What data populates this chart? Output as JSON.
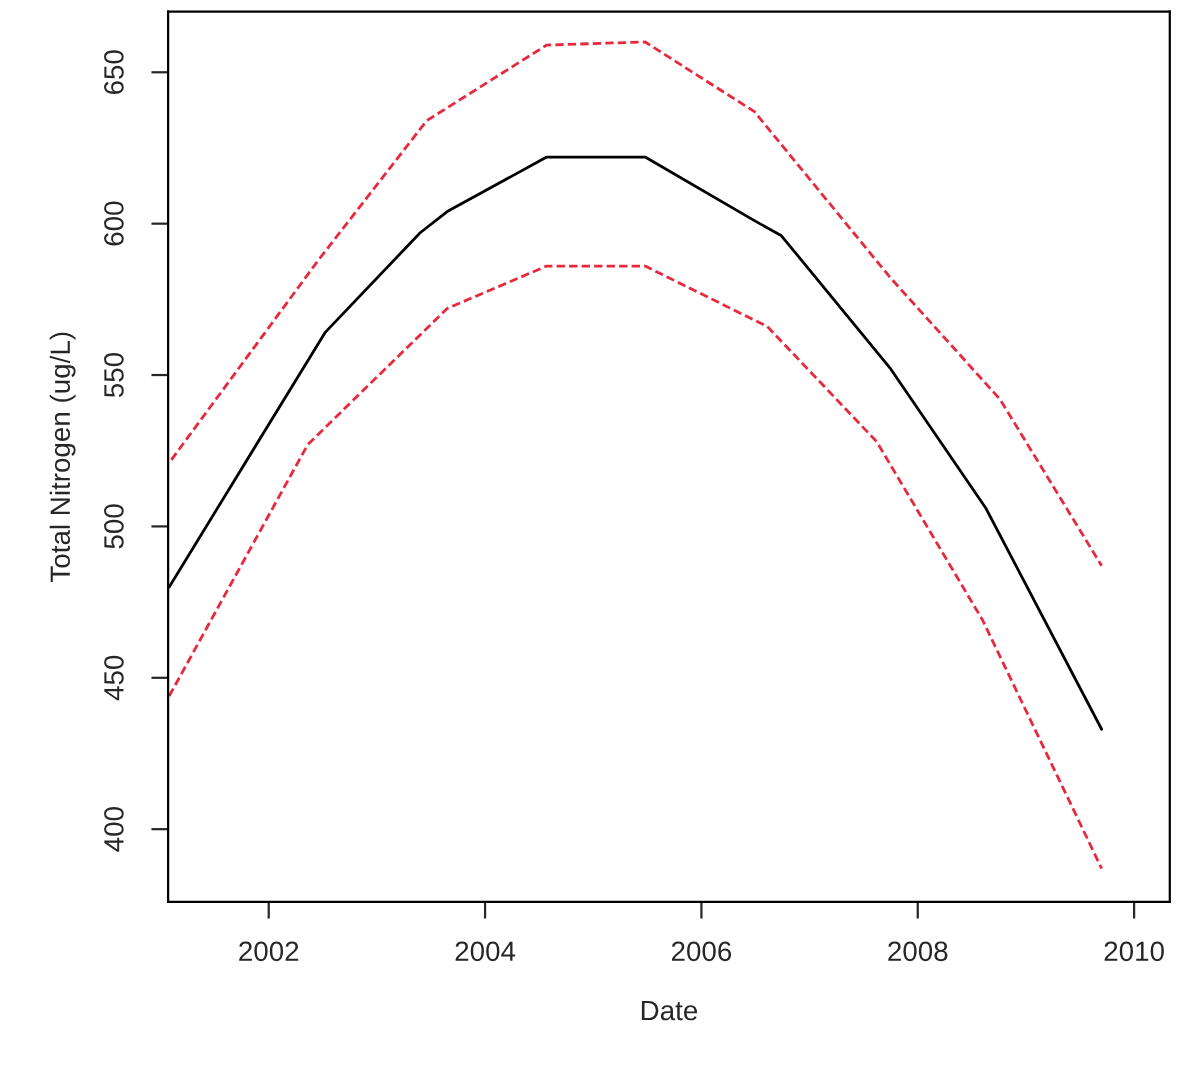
{
  "chart_data": {
    "type": "line",
    "xlabel": "Date",
    "ylabel": "Total Nitrogen (ug/L)",
    "xlim": [
      2001.07,
      2010.33
    ],
    "xticks": [
      2002,
      2004,
      2006,
      2008,
      2010
    ],
    "ylim": [
      376,
      670
    ],
    "yticks": [
      400,
      450,
      500,
      550,
      600,
      650
    ],
    "grid": false,
    "legend": false,
    "marker": "none",
    "series": [
      {
        "color": "#000000",
        "line_style": "solid",
        "x": [
          2001.08,
          2002.52,
          2003.4,
          2003.65,
          2004.57,
          2005.48,
          2006.49,
          2006.74,
          2007.75,
          2008.63,
          2009.7
        ],
        "values": [
          480,
          564,
          597,
          604,
          622,
          622,
          601,
          596,
          552,
          506,
          433
        ]
      },
      {
        "color": "#e8283c",
        "line_style": "dashed",
        "x": [
          2001.1,
          2002.46,
          2003.46,
          2004.57,
          2005.48,
          2006.49,
          2007.75,
          2008.76,
          2009.7
        ],
        "values": [
          522,
          588,
          634,
          659,
          660,
          637,
          582,
          542,
          487
        ]
      },
      {
        "color": "#e8283c",
        "line_style": "dashed",
        "x": [
          2001.08,
          2002.36,
          2003.65,
          2004.57,
          2005.48,
          2006.61,
          2007.62,
          2008.6,
          2009.7
        ],
        "values": [
          444,
          527,
          572,
          586,
          586,
          566,
          528,
          469,
          387
        ]
      }
    ]
  }
}
